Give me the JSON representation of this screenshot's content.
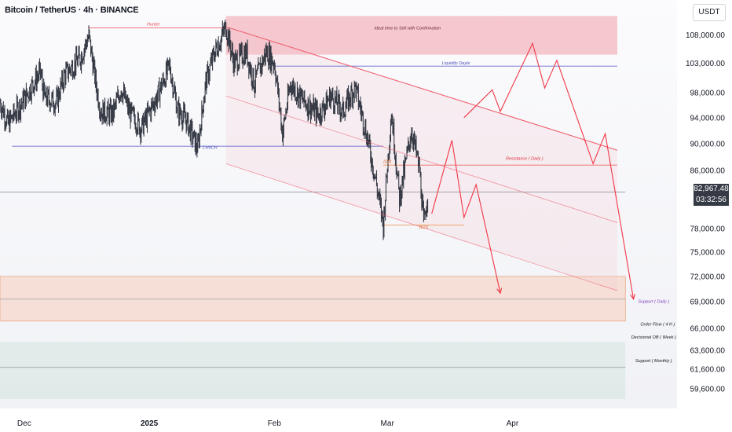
{
  "header": {
    "title": "Bitcoin / TetherUS · 4h · BINANCE",
    "currency": "USDT"
  },
  "current_price": {
    "value": "82,967.48",
    "countdown": "03:32:56"
  },
  "chart_data": {
    "type": "candlestick",
    "title": "Bitcoin / TetherUS · 4h · BINANCE",
    "yaxis": {
      "scale": "log",
      "ticks": [
        "108,000.00",
        "103,000.00",
        "98,000.00",
        "94,000.00",
        "90,000.00",
        "86,000.00",
        "78,000.00",
        "75,000.00",
        "72,000.00",
        "69,000.00",
        "66,000.00",
        "63,600.00",
        "61,600.00",
        "59,600.00"
      ],
      "tick_values": [
        108000,
        103000,
        98000,
        94000,
        90000,
        86000,
        78000,
        75000,
        72000,
        69000,
        66000,
        63600,
        61600,
        59600
      ],
      "range": [
        58600,
        112000
      ]
    },
    "xaxis": {
      "ticks": [
        "Dec",
        "2025",
        "Feb",
        "Mar",
        "Apr"
      ],
      "tick_dates": [
        "2024-12-01",
        "2025-01-01",
        "2025-02-01",
        "2025-03-01",
        "2025-04-01"
      ],
      "range": [
        "2024-11-25",
        "2025-04-27"
      ]
    },
    "price_path": [
      [
        "2024-11-25",
        96500
      ],
      [
        "2024-11-27",
        93000
      ],
      [
        "2024-12-01",
        97000
      ],
      [
        "2024-12-05",
        101500
      ],
      [
        "2024-12-06",
        97200
      ],
      [
        "2024-12-09",
        96500
      ],
      [
        "2024-12-11",
        101000
      ],
      [
        "2024-12-15",
        104000
      ],
      [
        "2024-12-17",
        107800
      ],
      [
        "2024-12-19",
        98500
      ],
      [
        "2024-12-20",
        95000
      ],
      [
        "2024-12-23",
        94600
      ],
      [
        "2024-12-25",
        98800
      ],
      [
        "2024-12-27",
        95000
      ],
      [
        "2024-12-30",
        92300
      ],
      [
        "2025-01-03",
        97500
      ],
      [
        "2025-01-06",
        102500
      ],
      [
        "2025-01-08",
        95200
      ],
      [
        "2025-01-10",
        93800
      ],
      [
        "2025-01-13",
        89200
      ],
      [
        "2025-01-15",
        99800
      ],
      [
        "2025-01-17",
        104500
      ],
      [
        "2025-01-20",
        109500
      ],
      [
        "2025-01-22",
        103000
      ],
      [
        "2025-01-25",
        105000
      ],
      [
        "2025-01-27",
        99500
      ],
      [
        "2025-01-30",
        105000
      ],
      [
        "2025-02-01",
        103000
      ],
      [
        "2025-02-02",
        97500
      ],
      [
        "2025-02-03",
        91500
      ],
      [
        "2025-02-05",
        99500
      ],
      [
        "2025-02-08",
        96800
      ],
      [
        "2025-02-12",
        94500
      ],
      [
        "2025-02-15",
        97500
      ],
      [
        "2025-02-18",
        95000
      ],
      [
        "2025-02-21",
        99000
      ],
      [
        "2025-02-24",
        91000
      ],
      [
        "2025-02-26",
        85000
      ],
      [
        "2025-02-28",
        78500
      ],
      [
        "2025-03-02",
        94800
      ],
      [
        "2025-03-04",
        82000
      ],
      [
        "2025-03-07",
        92000
      ],
      [
        "2025-03-09",
        86000
      ],
      [
        "2025-03-10",
        78400
      ],
      [
        "2025-03-11",
        83000
      ]
    ],
    "projections": [
      {
        "name": "scenario-1",
        "points": [
          [
            "2025-03-12",
            80000
          ],
          [
            "2025-03-17",
            90500
          ],
          [
            "2025-03-20",
            79500
          ],
          [
            "2025-03-23",
            84000
          ],
          [
            "2025-03-29",
            70000
          ]
        ]
      },
      {
        "name": "scenario-2",
        "points": [
          [
            "2025-03-20",
            94000
          ],
          [
            "2025-03-27",
            98500
          ],
          [
            "2025-03-29",
            95000
          ],
          [
            "2025-04-06",
            106500
          ],
          [
            "2025-04-09",
            98800
          ],
          [
            "2025-04-12",
            103500
          ],
          [
            "2025-04-21",
            87000
          ],
          [
            "2025-04-24",
            91500
          ],
          [
            "2025-05-01",
            69300
          ]
        ]
      }
    ],
    "trendlines": [
      {
        "name": "resistance-line",
        "points": [
          [
            "2025-01-20",
            109500
          ],
          [
            "2025-04-27",
            89000
          ]
        ]
      },
      {
        "name": "channel-mid",
        "points": [
          [
            "2025-01-20",
            97500
          ],
          [
            "2025-04-27",
            78800
          ]
        ]
      },
      {
        "name": "channel-lower",
        "points": [
          [
            "2025-01-20",
            87000
          ],
          [
            "2025-04-27",
            70300
          ]
        ]
      }
    ],
    "zones": [
      {
        "name": "sell-zone",
        "y": [
          104500,
          111500
        ],
        "x": [
          "2025-01-20",
          "2025-04-27"
        ],
        "color": "#f08a96"
      },
      {
        "name": "daily-support-zone",
        "y": [
          66800,
          72000
        ],
        "x": [
          "2024-11-25",
          "2025-04-29"
        ],
        "color": "#f7c9b3"
      },
      {
        "name": "monthly-support-zone",
        "y": [
          58600,
          64500
        ],
        "x": [
          "2024-11-25",
          "2025-04-29"
        ],
        "color": "#cfe3dc"
      }
    ],
    "levels": [
      {
        "name": "hunter-level",
        "y": 109300,
        "x": [
          "2024-12-17",
          "2025-01-20"
        ],
        "color": "#f04050"
      },
      {
        "name": "liquidity-level",
        "y": 102500,
        "x": [
          "2025-02-01",
          "2025-04-27"
        ],
        "color": "#6a6ad0"
      },
      {
        "name": "choch-level",
        "y": 89600,
        "x": [
          "2024-11-28",
          "2025-02-28"
        ],
        "color": "#5252c8"
      },
      {
        "name": "resistance-level",
        "y": 86800,
        "x": [
          "2025-03-04",
          "2025-04-27"
        ],
        "color": "#f06464"
      },
      {
        "name": "idm-level",
        "y": 86800,
        "x": [
          "2025-02-28",
          "2025-03-04"
        ],
        "color": "#f08a40"
      },
      {
        "name": "bos-level",
        "y": 78500,
        "x": [
          "2025-02-28",
          "2025-03-20"
        ],
        "color": "#f08a40"
      },
      {
        "name": "daily-support-mid",
        "y": 69300,
        "x": [
          "2024-11-25",
          "2025-04-29"
        ],
        "color": "#a0a0a8"
      },
      {
        "name": "monthly-support-mid",
        "y": 61800,
        "x": [
          "2024-11-25",
          "2025-04-29"
        ],
        "color": "#a0a0a8"
      },
      {
        "name": "current-price-line",
        "y": 82967.48,
        "x": [
          "2024-11-25",
          "2025-04-29"
        ],
        "color": "#9598a1"
      }
    ],
    "annotations": [
      {
        "name": "hunter-label",
        "text": "Hunter",
        "date": "2025-01-02",
        "price": 109700,
        "color": "#f04050"
      },
      {
        "name": "sell-zone-label",
        "text": "Ideal time to Sell with Confirmation",
        "date": "2025-03-06",
        "price": 109000,
        "color": "#6b2a35"
      },
      {
        "name": "liquidity-label",
        "text": "Liquidity Dayle",
        "date": "2025-03-18",
        "price": 102800,
        "color": "#5050c0"
      },
      {
        "name": "choch-label",
        "text": "CHoCH",
        "date": "2025-01-16",
        "price": 89200,
        "color": "#5050c0"
      },
      {
        "name": "idm-label",
        "text": "IDM",
        "date": "2025-03-01",
        "price": 87100,
        "color": "#e07030"
      },
      {
        "name": "resistance-label",
        "text": "Resistance ( Daily )",
        "date": "2025-04-04",
        "price": 87600,
        "color": "#e03040"
      },
      {
        "name": "bos-label",
        "text": "BOS",
        "date": "2025-03-10",
        "price": 78000,
        "color": "#e07030"
      },
      {
        "name": "support-daily-label",
        "text": "Support ( Daily )",
        "date": "2025-05-06",
        "price": 68900,
        "color": "#8040c0"
      },
      {
        "name": "order-flow-label",
        "text": "Order Flow ( 4 H )",
        "date": "2025-05-07",
        "price": 66300,
        "color": "#131722"
      },
      {
        "name": "decisional-ob-label",
        "text": "Decisional OB ( Week )",
        "date": "2025-05-06",
        "price": 64850,
        "color": "#131722"
      },
      {
        "name": "support-monthly-label",
        "text": "Support ( Monthly )",
        "date": "2025-05-06",
        "price": 62350,
        "color": "#131722"
      }
    ]
  },
  "colors": {
    "candles": "#363a45",
    "projection": "#f23645",
    "axis_text": "#131722"
  }
}
